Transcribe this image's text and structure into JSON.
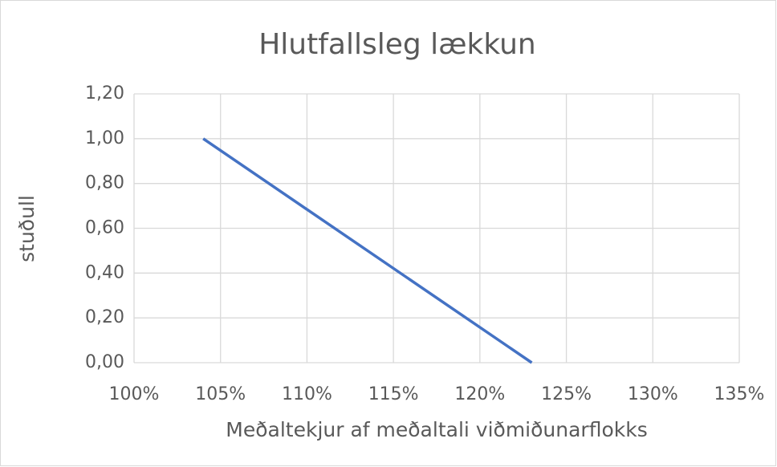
{
  "chart_data": {
    "type": "line",
    "title": "Hlutfallsleg lækkun",
    "x_label": "Meðaltekjur af meðaltali viðmiðunarflokks",
    "y_label": "stuðull",
    "x": [
      104,
      123
    ],
    "values": [
      1.0,
      0.0
    ],
    "color": "#4472c4",
    "xlim": [
      100,
      135
    ],
    "xticks": [
      {
        "value": 100,
        "label": "100%"
      },
      {
        "value": 105,
        "label": "105%"
      },
      {
        "value": 110,
        "label": "110%"
      },
      {
        "value": 115,
        "label": "115%"
      },
      {
        "value": 120,
        "label": "120%"
      },
      {
        "value": 125,
        "label": "125%"
      },
      {
        "value": 130,
        "label": "130%"
      },
      {
        "value": 135,
        "label": "135%"
      }
    ],
    "ylim": [
      0,
      1.2
    ],
    "yticks": [
      {
        "value": 0,
        "label": "0,00"
      },
      {
        "value": 0.2,
        "label": "0,20"
      },
      {
        "value": 0.4,
        "label": "0,40"
      },
      {
        "value": 0.6,
        "label": "0,60"
      },
      {
        "value": 0.8,
        "label": "0,80"
      },
      {
        "value": 1.0,
        "label": "1,00"
      },
      {
        "value": 1.2,
        "label": "1,20"
      }
    ],
    "grid": true
  }
}
